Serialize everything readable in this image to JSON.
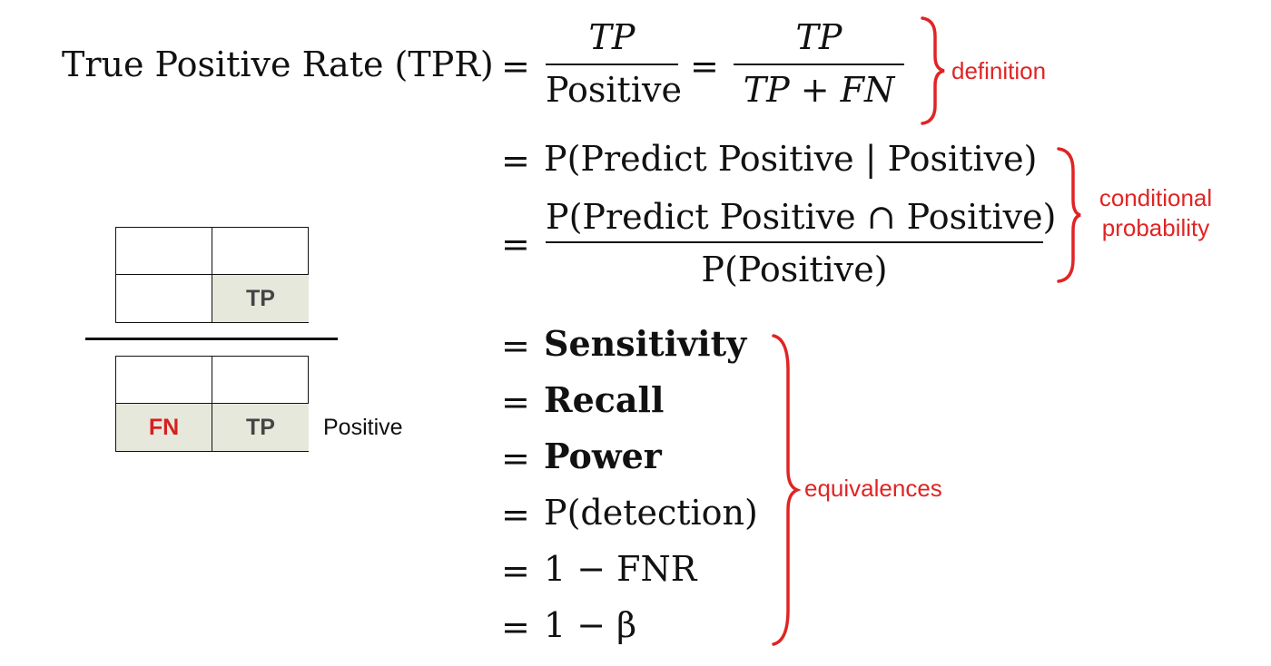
{
  "colors": {
    "annotation": "#e02424",
    "cell_fill": "#e6e8dc",
    "fn_text": "#d62020",
    "tp_text": "#444444",
    "ink": "#111111"
  },
  "equations": {
    "tpr_label": "True Positive Rate (TPR)",
    "eq": "=",
    "frac1": {
      "num": "TP",
      "den": "Positive"
    },
    "frac2": {
      "num": "TP",
      "den": "TP + FN"
    },
    "cond_prob": "P(Predict Positive | Positive)",
    "frac3": {
      "num": "P(Predict Positive ∩ Positive)",
      "den": "P(Positive)"
    },
    "sensitivity": "Sensitivity",
    "recall": "Recall",
    "power": "Power",
    "detection": "P(detection)",
    "one_minus_fnr": "1 − FNR",
    "one_minus_beta": "1 − β"
  },
  "annotations": {
    "definition": "definition",
    "conditional_line1": "conditional",
    "conditional_line2": "probability",
    "equivalences": "equivalences"
  },
  "matrix": {
    "top": {
      "tp": "TP"
    },
    "bottom": {
      "fn": "FN",
      "tp": "TP"
    },
    "positive_label": "Positive"
  }
}
